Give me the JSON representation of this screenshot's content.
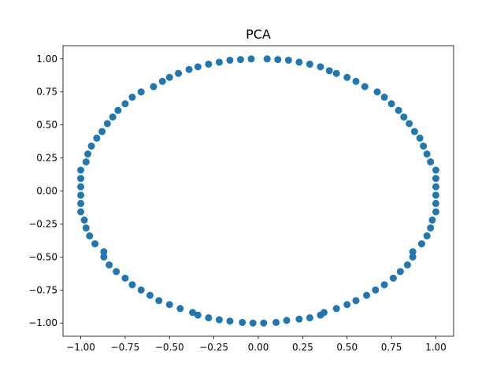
{
  "chart_data": {
    "type": "scatter",
    "title": "PCA",
    "xlabel": "",
    "ylabel": "",
    "xlim": [
      -1.1,
      1.1
    ],
    "ylim": [
      -1.1,
      1.1
    ],
    "xticks": [
      -1.0,
      -0.75,
      -0.5,
      -0.25,
      0.0,
      0.25,
      0.5,
      0.75,
      1.0
    ],
    "xtick_labels": [
      "−1.00",
      "−0.75",
      "−0.50",
      "−0.25",
      "0.00",
      "0.25",
      "0.50",
      "0.75",
      "1.00"
    ],
    "yticks": [
      -1.0,
      -0.75,
      -0.5,
      -0.25,
      0.0,
      0.25,
      0.5,
      0.75,
      1.0
    ],
    "ytick_labels": [
      "−1.00",
      "−0.75",
      "−0.50",
      "−0.25",
      "0.00",
      "0.25",
      "0.50",
      "0.75",
      "1.00"
    ],
    "grid": false,
    "legend": false,
    "color": "#1f77b4",
    "points": [
      [
        1.0,
        0.158
      ],
      [
        1.0,
        0.095
      ],
      [
        1.0,
        0.032
      ],
      [
        1.0,
        -0.032
      ],
      [
        1.0,
        -0.095
      ],
      [
        1.0,
        -0.158
      ],
      [
        0.98,
        -0.22
      ],
      [
        0.97,
        -0.28
      ],
      [
        0.95,
        -0.34
      ],
      [
        0.92,
        -0.4
      ],
      [
        0.87,
        -0.46
      ],
      [
        0.87,
        -0.5
      ],
      [
        0.84,
        -0.56
      ],
      [
        0.8,
        -0.61
      ],
      [
        0.76,
        -0.66
      ],
      [
        0.71,
        -0.71
      ],
      [
        0.66,
        -0.75
      ],
      [
        0.61,
        -0.79
      ],
      [
        0.55,
        -0.83
      ],
      [
        0.5,
        -0.86
      ],
      [
        0.44,
        -0.89
      ],
      [
        0.37,
        -0.92
      ],
      [
        0.35,
        -0.94
      ],
      [
        0.29,
        -0.96
      ],
      [
        0.23,
        -0.97
      ],
      [
        0.16,
        -0.98
      ],
      [
        0.1,
        -0.995
      ],
      [
        0.03,
        -1.0
      ],
      [
        -0.03,
        -1.0
      ],
      [
        -0.09,
        -0.995
      ],
      [
        -0.16,
        -0.985
      ],
      [
        -0.22,
        -0.975
      ],
      [
        -0.28,
        -0.96
      ],
      [
        -0.34,
        -0.94
      ],
      [
        -0.37,
        -0.92
      ],
      [
        -0.44,
        -0.89
      ],
      [
        -0.5,
        -0.86
      ],
      [
        -0.56,
        -0.83
      ],
      [
        -0.61,
        -0.79
      ],
      [
        -0.66,
        -0.75
      ],
      [
        -0.71,
        -0.71
      ],
      [
        -0.75,
        -0.66
      ],
      [
        -0.8,
        -0.61
      ],
      [
        -0.84,
        -0.56
      ],
      [
        -0.87,
        -0.5
      ],
      [
        -0.87,
        -0.46
      ],
      [
        -0.92,
        -0.4
      ],
      [
        -0.95,
        -0.34
      ],
      [
        -0.97,
        -0.28
      ],
      [
        -0.98,
        -0.22
      ],
      [
        -1.0,
        -0.158
      ],
      [
        -1.0,
        -0.095
      ],
      [
        -1.0,
        -0.032
      ],
      [
        -1.0,
        0.032
      ],
      [
        -1.0,
        0.095
      ],
      [
        -1.0,
        0.158
      ],
      [
        -0.97,
        0.22
      ],
      [
        -0.96,
        0.28
      ],
      [
        -0.94,
        0.34
      ],
      [
        -0.91,
        0.4
      ],
      [
        -0.88,
        0.45
      ],
      [
        -0.85,
        0.51
      ],
      [
        -0.82,
        0.56
      ],
      [
        -0.79,
        0.61
      ],
      [
        -0.75,
        0.66
      ],
      [
        -0.71,
        0.71
      ],
      [
        -0.66,
        0.75
      ],
      [
        -0.59,
        0.79
      ],
      [
        -0.54,
        0.83
      ],
      [
        -0.5,
        0.86
      ],
      [
        -0.45,
        0.89
      ],
      [
        -0.39,
        0.92
      ],
      [
        -0.34,
        0.94
      ],
      [
        -0.28,
        0.96
      ],
      [
        -0.22,
        0.975
      ],
      [
        -0.16,
        0.99
      ],
      [
        -0.1,
        0.995
      ],
      [
        -0.04,
        1.0
      ],
      [
        0.05,
        1.0
      ],
      [
        0.11,
        0.995
      ],
      [
        0.17,
        0.99
      ],
      [
        0.23,
        0.975
      ],
      [
        0.29,
        0.96
      ],
      [
        0.35,
        0.94
      ],
      [
        0.4,
        0.91
      ],
      [
        0.44,
        0.89
      ],
      [
        0.5,
        0.86
      ],
      [
        0.55,
        0.83
      ],
      [
        0.6,
        0.79
      ],
      [
        0.67,
        0.75
      ],
      [
        0.71,
        0.71
      ],
      [
        0.75,
        0.66
      ],
      [
        0.79,
        0.61
      ],
      [
        0.82,
        0.56
      ],
      [
        0.85,
        0.51
      ],
      [
        0.88,
        0.45
      ],
      [
        0.91,
        0.4
      ],
      [
        0.93,
        0.34
      ],
      [
        0.95,
        0.28
      ],
      [
        0.97,
        0.22
      ]
    ]
  }
}
